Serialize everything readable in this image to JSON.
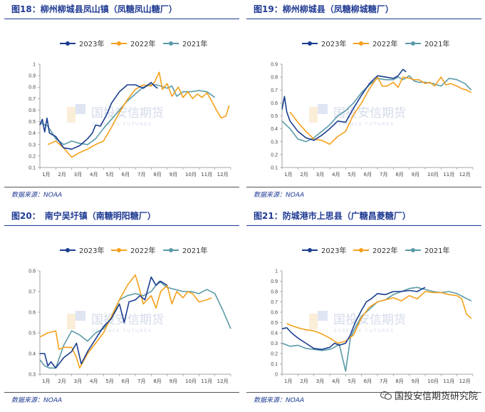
{
  "source_text": "数据来源：NOAA",
  "wechat_label": "国投安信期货研究院",
  "watermark": {
    "cn": "国投安信期货",
    "en": "ESSENCE FUTURES"
  },
  "colors": {
    "2023": "#1a3d8f",
    "2022": "#f5a01a",
    "2021": "#5a9aa8",
    "title": "#1f3a93"
  },
  "chart_data": [
    {
      "type": "line",
      "title": "图18：柳州柳城县凤山镇（凤糖凤山糖厂）",
      "months": [
        "1月",
        "2月",
        "3月",
        "4月",
        "5月",
        "6月",
        "7月",
        "8月",
        "9月",
        "10月",
        "11月",
        "12月"
      ],
      "ylim": [
        0.1,
        1.0
      ],
      "yticks": [
        "0.1",
        "0.2",
        "0.3",
        "0.4",
        "0.5",
        "0.6",
        "0.7",
        "0.8",
        "0.9",
        "1"
      ],
      "series": [
        {
          "name": "2023年",
          "x": [
            0,
            0.15,
            0.3,
            0.45,
            0.6,
            1.0,
            1.5,
            2.0,
            2.5,
            3.0,
            3.3,
            3.5,
            3.8,
            4.2,
            4.5,
            5.0,
            5.5,
            6.0,
            6.5,
            7.0,
            7.2,
            7.4
          ],
          "y": [
            0.47,
            0.52,
            0.41,
            0.53,
            0.4,
            0.37,
            0.27,
            0.26,
            0.29,
            0.35,
            0.4,
            0.47,
            0.46,
            0.56,
            0.66,
            0.76,
            0.82,
            0.82,
            0.79,
            0.84,
            0.81,
            0.79
          ]
        },
        {
          "name": "2022年",
          "x": [
            0.5,
            1.0,
            1.5,
            2.0,
            2.5,
            3.0,
            3.5,
            4.0,
            4.5,
            5.0,
            5.5,
            6.0,
            6.5,
            7.0,
            7.2,
            7.5,
            7.7,
            8.0,
            8.3,
            8.7,
            9.0,
            9.3,
            9.6,
            9.9,
            10.2,
            10.5,
            10.8,
            11.1,
            11.4,
            11.7,
            11.9
          ],
          "y": [
            0.3,
            0.33,
            0.27,
            0.19,
            0.23,
            0.26,
            0.3,
            0.33,
            0.45,
            0.58,
            0.69,
            0.78,
            0.82,
            0.81,
            0.84,
            0.93,
            0.78,
            0.83,
            0.72,
            0.8,
            0.71,
            0.76,
            0.7,
            0.74,
            0.71,
            0.75,
            0.68,
            0.6,
            0.53,
            0.55,
            0.64
          ]
        },
        {
          "name": "2021年",
          "x": [
            0,
            0.5,
            1.0,
            1.5,
            2.0,
            2.5,
            3.0,
            3.5,
            4.0,
            4.5,
            5.0,
            5.5,
            6.0,
            6.5,
            7.0,
            7.3,
            7.6,
            8.0,
            8.3,
            8.6,
            9.0,
            9.5,
            10.0,
            10.5,
            11.0
          ],
          "y": [
            0.49,
            0.46,
            0.35,
            0.3,
            0.33,
            0.31,
            0.3,
            0.35,
            0.44,
            0.52,
            0.6,
            0.68,
            0.74,
            0.8,
            0.82,
            0.82,
            0.81,
            0.79,
            0.81,
            0.72,
            0.76,
            0.76,
            0.77,
            0.76,
            0.71
          ]
        }
      ]
    },
    {
      "type": "line",
      "title": "图19：柳州柳城县（凤糖柳城糖厂）",
      "months": [
        "1月",
        "2月",
        "3月",
        "4月",
        "5月",
        "6月",
        "7月",
        "8月",
        "9月",
        "10月",
        "11月",
        "12月"
      ],
      "ylim": [
        0.1,
        0.9
      ],
      "yticks": [
        "0.1",
        "0.2",
        "0.3",
        "0.4",
        "0.5",
        "0.6",
        "0.7",
        "0.8",
        "0.9"
      ],
      "series": [
        {
          "name": "2023年",
          "x": [
            0,
            0.15,
            0.3,
            0.5,
            1.0,
            1.5,
            2.0,
            2.5,
            3.0,
            3.5,
            4.0,
            4.5,
            5.0,
            5.5,
            6.0,
            6.5,
            7.0,
            7.3,
            7.6,
            7.8
          ],
          "y": [
            0.55,
            0.65,
            0.53,
            0.46,
            0.38,
            0.33,
            0.31,
            0.35,
            0.4,
            0.46,
            0.45,
            0.56,
            0.66,
            0.75,
            0.81,
            0.8,
            0.79,
            0.81,
            0.86,
            0.84
          ]
        },
        {
          "name": "2022年",
          "x": [
            0.5,
            1.0,
            1.5,
            2.0,
            2.5,
            3.0,
            3.5,
            4.0,
            4.5,
            5.0,
            5.5,
            6.0,
            6.3,
            6.6,
            7.0,
            7.3,
            7.6,
            8.0,
            8.3,
            8.6,
            9.0,
            9.3,
            9.6,
            10.0,
            10.3,
            10.6,
            11.0,
            11.3,
            11.6,
            11.9
          ],
          "y": [
            0.53,
            0.45,
            0.38,
            0.32,
            0.31,
            0.28,
            0.34,
            0.38,
            0.51,
            0.6,
            0.71,
            0.8,
            0.73,
            0.73,
            0.76,
            0.72,
            0.8,
            0.79,
            0.78,
            0.78,
            0.75,
            0.76,
            0.73,
            0.8,
            0.74,
            0.75,
            0.73,
            0.71,
            0.7,
            0.68
          ]
        },
        {
          "name": "2021年",
          "x": [
            0,
            0.5,
            1.0,
            1.5,
            2.0,
            2.5,
            3.0,
            3.5,
            4.0,
            4.5,
            5.0,
            5.5,
            6.0,
            6.5,
            7.0,
            7.3,
            7.6,
            8.0,
            8.3,
            8.6,
            9.0,
            9.5,
            10.0,
            10.5,
            11.0,
            11.5,
            11.9
          ],
          "y": [
            0.46,
            0.4,
            0.32,
            0.3,
            0.33,
            0.38,
            0.43,
            0.5,
            0.54,
            0.6,
            0.68,
            0.74,
            0.79,
            0.78,
            0.78,
            0.8,
            0.78,
            0.81,
            0.77,
            0.76,
            0.76,
            0.75,
            0.73,
            0.79,
            0.78,
            0.75,
            0.7
          ]
        }
      ]
    },
    {
      "type": "line",
      "title": "图20：　南宁吴圩镇（南糖明阳糖厂）",
      "months": [
        "1月",
        "2月",
        "3月",
        "4月",
        "5月",
        "6月",
        "7月",
        "8月",
        "9月",
        "10月",
        "11月",
        "12月"
      ],
      "ylim": [
        0.3,
        0.8
      ],
      "yticks": [
        "0.3",
        "0.4",
        "0.5",
        "0.6",
        "0.7",
        "0.8"
      ],
      "series": [
        {
          "name": "2023年",
          "x": [
            0,
            0.3,
            0.5,
            0.7,
            1.0,
            1.5,
            2.0,
            2.3,
            2.6,
            3.0,
            3.5,
            4.0,
            4.5,
            5.0,
            5.3,
            5.6,
            6.0,
            6.3,
            6.6,
            7.0,
            7.3,
            7.6,
            8.0
          ],
          "y": [
            0.4,
            0.4,
            0.34,
            0.36,
            0.33,
            0.38,
            0.41,
            0.45,
            0.35,
            0.41,
            0.47,
            0.53,
            0.57,
            0.64,
            0.55,
            0.65,
            0.66,
            0.68,
            0.66,
            0.77,
            0.73,
            0.75,
            0.73
          ]
        },
        {
          "name": "2022年",
          "x": [
            0,
            0.5,
            1.0,
            1.2,
            1.5,
            2.0,
            2.3,
            2.5,
            3.0,
            3.5,
            4.0,
            4.5,
            5.0,
            5.5,
            6.0,
            6.2,
            6.5,
            7.0,
            7.3,
            7.6,
            8.0,
            8.3,
            8.6,
            9.0,
            9.3,
            9.6,
            10.0,
            10.5,
            10.8
          ],
          "y": [
            0.48,
            0.5,
            0.51,
            0.42,
            0.43,
            0.43,
            0.38,
            0.33,
            0.4,
            0.45,
            0.5,
            0.58,
            0.66,
            0.73,
            0.78,
            0.73,
            0.64,
            0.68,
            0.62,
            0.7,
            0.73,
            0.64,
            0.7,
            0.67,
            0.7,
            0.69,
            0.65,
            0.66,
            0.67
          ]
        },
        {
          "name": "2021年",
          "x": [
            0,
            0.3,
            0.6,
            1.0,
            1.5,
            2.0,
            2.5,
            3.0,
            3.5,
            4.0,
            4.5,
            5.0,
            5.5,
            6.0,
            6.5,
            7.0,
            7.5,
            8.0,
            8.5,
            9.0,
            9.5,
            10.0,
            10.5,
            11.0,
            11.5,
            12.0
          ],
          "y": [
            0.37,
            0.34,
            0.33,
            0.33,
            0.44,
            0.51,
            0.49,
            0.46,
            0.5,
            0.52,
            0.57,
            0.66,
            0.68,
            0.69,
            0.68,
            0.7,
            0.75,
            0.72,
            0.71,
            0.7,
            0.7,
            0.69,
            0.71,
            0.69,
            0.61,
            0.52
          ]
        }
      ]
    },
    {
      "type": "line",
      "title": "图21：防城港市上思县（广糖昌菱糖厂）",
      "months": [
        "1月",
        "2月",
        "3月",
        "4月",
        "5月",
        "6月",
        "7月",
        "8月",
        "9月",
        "10月",
        "11月",
        "12月"
      ],
      "ylim": [
        0,
        1.0
      ],
      "yticks": [
        "0",
        "0.1",
        "0.2",
        "0.3",
        "0.4",
        "0.5",
        "0.6",
        "0.7",
        "0.8",
        "0.9",
        "1"
      ],
      "series": [
        {
          "name": "2023年",
          "x": [
            0,
            0.3,
            0.6,
            1.0,
            1.5,
            2.0,
            2.5,
            3.0,
            3.3,
            3.6,
            4.0,
            4.3,
            4.6,
            5.0,
            5.3,
            5.6,
            6.0,
            6.5,
            7.0,
            7.5,
            8.0,
            8.5,
            9.0
          ],
          "y": [
            0.44,
            0.45,
            0.4,
            0.35,
            0.3,
            0.25,
            0.24,
            0.26,
            0.3,
            0.28,
            0.3,
            0.38,
            0.5,
            0.62,
            0.7,
            0.73,
            0.78,
            0.77,
            0.8,
            0.8,
            0.81,
            0.8,
            0.84
          ]
        },
        {
          "name": "2022年",
          "x": [
            0.3,
            0.6,
            1.0,
            1.5,
            2.0,
            2.5,
            3.0,
            3.5,
            4.0,
            4.5,
            5.0,
            5.5,
            6.0,
            6.5,
            7.0,
            7.5,
            8.0,
            8.5,
            9.0,
            9.5,
            10.0,
            10.5,
            11.0,
            11.3,
            11.6,
            11.9
          ],
          "y": [
            0.49,
            0.47,
            0.45,
            0.43,
            0.42,
            0.39,
            0.35,
            0.3,
            0.32,
            0.38,
            0.55,
            0.65,
            0.7,
            0.72,
            0.74,
            0.71,
            0.76,
            0.73,
            0.8,
            0.79,
            0.79,
            0.77,
            0.76,
            0.73,
            0.58,
            0.54
          ]
        },
        {
          "name": "2021年",
          "x": [
            0,
            0.5,
            1.0,
            1.5,
            2.0,
            2.5,
            3.0,
            3.3,
            3.6,
            4.0,
            4.3,
            4.6,
            5.0,
            5.5,
            6.0,
            6.5,
            7.0,
            7.5,
            8.0,
            8.5,
            9.0,
            9.5,
            10.0,
            10.5,
            11.0,
            11.5,
            11.9
          ],
          "y": [
            0.3,
            0.27,
            0.28,
            0.25,
            0.24,
            0.23,
            0.24,
            0.26,
            0.29,
            0.03,
            0.35,
            0.45,
            0.56,
            0.63,
            0.7,
            0.72,
            0.77,
            0.8,
            0.83,
            0.84,
            0.82,
            0.8,
            0.79,
            0.8,
            0.78,
            0.74,
            0.71
          ]
        }
      ]
    }
  ]
}
